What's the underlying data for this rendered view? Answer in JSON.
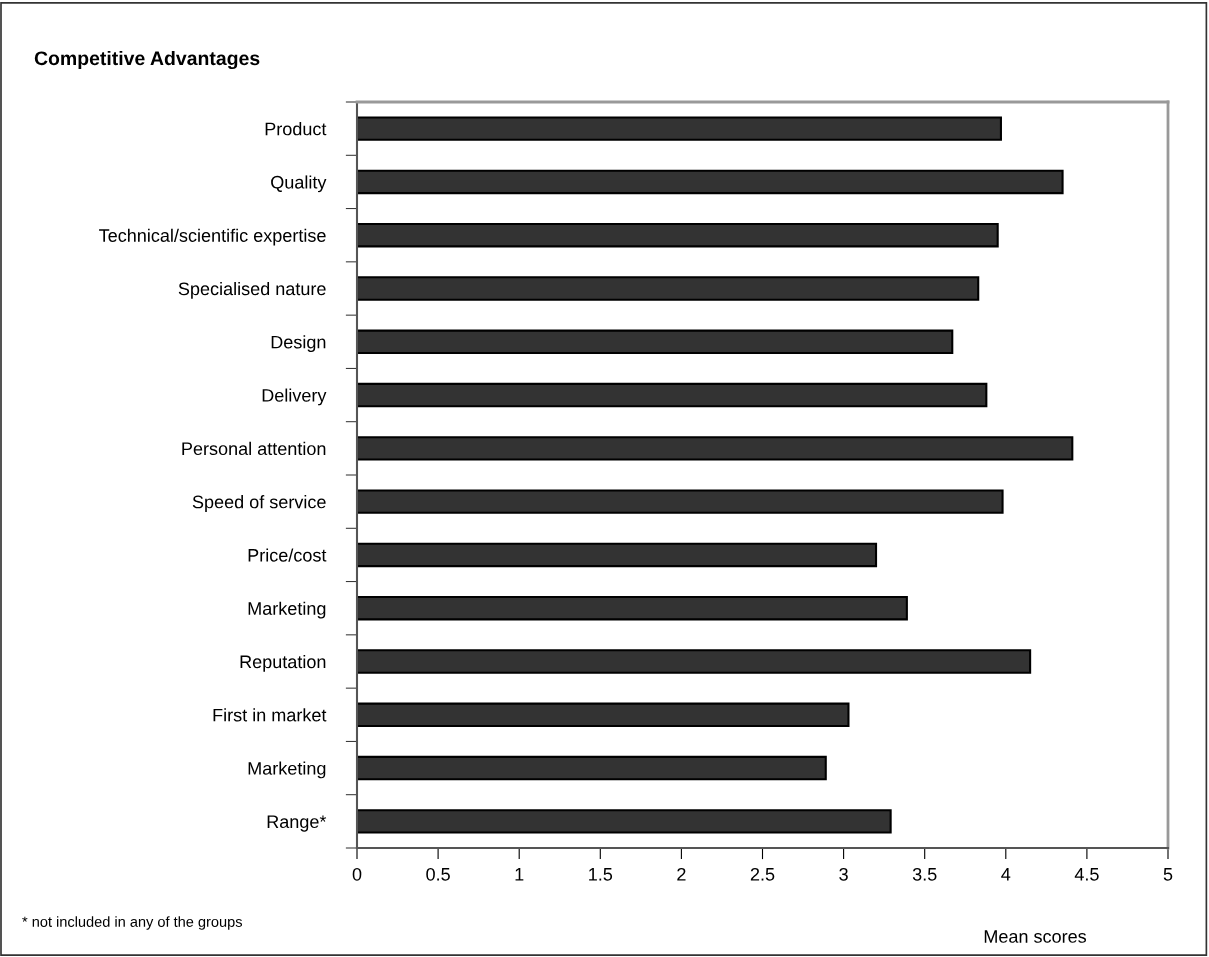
{
  "chart_data": {
    "type": "bar",
    "orientation": "horizontal",
    "title": "Competitive Advantages",
    "xlabel": "Mean scores",
    "categories": [
      "Product",
      "Quality",
      "Technical/scientific expertise",
      "Specialised nature",
      "Design",
      "Delivery",
      "Personal attention",
      "Speed of service",
      "Price/cost",
      "Marketing",
      "Reputation",
      "First in market",
      "Marketing",
      "Range*"
    ],
    "values": [
      3.97,
      4.35,
      3.95,
      3.83,
      3.67,
      3.88,
      4.41,
      3.98,
      3.2,
      3.39,
      4.15,
      3.03,
      2.89,
      3.29
    ],
    "color": "#333333",
    "xlim": [
      0,
      5
    ],
    "xticks": [
      0,
      0.5,
      1,
      1.5,
      2,
      2.5,
      3,
      3.5,
      4,
      4.5,
      5
    ],
    "grid": false,
    "legend": false,
    "annotations": [
      "* not included in any of the groups"
    ]
  }
}
